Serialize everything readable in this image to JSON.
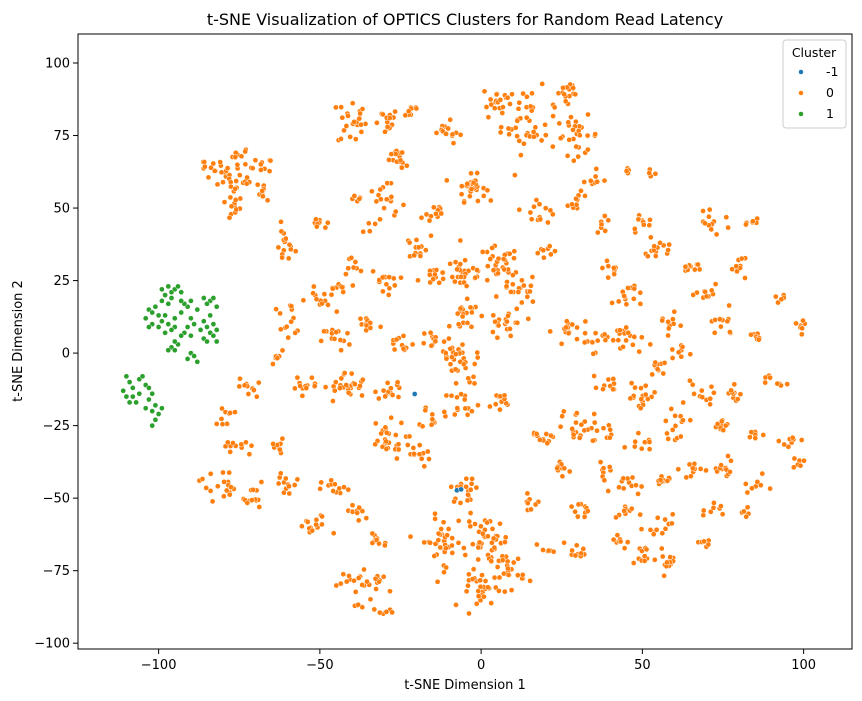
{
  "chart_data": {
    "type": "scatter",
    "title": "t-SNE Visualization of OPTICS Clusters for Random Read Latency",
    "xlabel": "t-SNE Dimension 1",
    "ylabel": "t-SNE Dimension 2",
    "xlim": [
      -125,
      115
    ],
    "ylim": [
      -102,
      110
    ],
    "xticks": [
      -100,
      -50,
      0,
      50,
      100
    ],
    "yticks": [
      -100,
      -75,
      -50,
      -25,
      0,
      25,
      50,
      75,
      100
    ],
    "xtick_labels": [
      "−100",
      "−50",
      "0",
      "50",
      "100"
    ],
    "ytick_labels": [
      "−100",
      "−75",
      "−50",
      "−25",
      "0",
      "25",
      "50",
      "75",
      "100"
    ],
    "grid": false,
    "legend": {
      "title": "Cluster",
      "placement": "top-right",
      "entries": [
        {
          "label": "-1",
          "color": "#1f77b4"
        },
        {
          "label": "0",
          "color": "#ff7f0e"
        },
        {
          "label": "1",
          "color": "#2ca02c"
        }
      ]
    },
    "series": [
      {
        "name": "-1",
        "color": "#1f77b4",
        "points": [
          [
            -7.5,
            -47.3
          ],
          [
            -6.2,
            -47.0
          ],
          [
            -20.6,
            -14.1
          ]
        ]
      },
      {
        "name": "1",
        "color": "#2ca02c",
        "points": [
          [
            -97,
            23
          ],
          [
            -96,
            21
          ],
          [
            -95,
            22
          ],
          [
            -98,
            20
          ],
          [
            -94,
            23
          ],
          [
            -99,
            22
          ],
          [
            -93,
            21
          ],
          [
            -96,
            19
          ],
          [
            -97,
            17
          ],
          [
            -99,
            18
          ],
          [
            -101,
            16
          ],
          [
            -103,
            15
          ],
          [
            -102,
            14
          ],
          [
            -104,
            12
          ],
          [
            -102,
            10
          ],
          [
            -103,
            9
          ],
          [
            -100,
            13
          ],
          [
            -98,
            13
          ],
          [
            -99,
            11
          ],
          [
            -97,
            10
          ],
          [
            -95,
            9
          ],
          [
            -96,
            8
          ],
          [
            -98,
            7
          ],
          [
            -100,
            9
          ],
          [
            -95,
            12
          ],
          [
            -93,
            14
          ],
          [
            -91,
            16
          ],
          [
            -92,
            17
          ],
          [
            -90,
            18
          ],
          [
            -93,
            18
          ],
          [
            -88,
            15
          ],
          [
            -90,
            12
          ],
          [
            -89,
            10
          ],
          [
            -91,
            9
          ],
          [
            -92,
            7
          ],
          [
            -90,
            6
          ],
          [
            -93,
            6
          ],
          [
            -96,
            2
          ],
          [
            -95,
            1
          ],
          [
            -94,
            3
          ],
          [
            -97,
            1
          ],
          [
            -95,
            4
          ],
          [
            -90,
            0
          ],
          [
            -91,
            -2
          ],
          [
            -89,
            -1
          ],
          [
            -88,
            -3
          ],
          [
            -86,
            19
          ],
          [
            -84,
            18
          ],
          [
            -83,
            19
          ],
          [
            -85,
            17
          ],
          [
            -82,
            16
          ],
          [
            -84,
            13
          ],
          [
            -83,
            10
          ],
          [
            -85,
            9
          ],
          [
            -82,
            8
          ],
          [
            -84,
            7
          ],
          [
            -83,
            6
          ],
          [
            -86,
            5
          ],
          [
            -85,
            4
          ],
          [
            -82,
            4
          ],
          [
            -87,
            8
          ],
          [
            -86,
            11
          ],
          [
            -110,
            -8
          ],
          [
            -109,
            -10
          ],
          [
            -108,
            -12
          ],
          [
            -111,
            -13
          ],
          [
            -110,
            -15
          ],
          [
            -108,
            -15
          ],
          [
            -107,
            -17
          ],
          [
            -106,
            -14
          ],
          [
            -104,
            -11
          ],
          [
            -103,
            -12
          ],
          [
            -102,
            -14
          ],
          [
            -103,
            -16
          ],
          [
            -101,
            -18
          ],
          [
            -102,
            -20
          ],
          [
            -104,
            -19
          ],
          [
            -101,
            -23
          ],
          [
            -102,
            -25
          ],
          [
            -100,
            -21
          ],
          [
            -99,
            -19
          ],
          [
            -109,
            -17
          ],
          [
            -106,
            -9
          ],
          [
            -105,
            -8
          ]
        ]
      },
      {
        "name": "0",
        "color": "#ff7f0e",
        "clusters": [
          [
            -80,
            62,
            4,
            5,
            14
          ],
          [
            -75,
            68,
            3,
            3,
            10
          ],
          [
            -74,
            58,
            4,
            3,
            12
          ],
          [
            -68,
            64,
            3,
            3,
            10
          ],
          [
            -67,
            56,
            2,
            3,
            8
          ],
          [
            -78,
            50,
            4,
            4,
            12
          ],
          [
            -85,
            65,
            2,
            2,
            6
          ],
          [
            -61,
            37,
            3,
            6,
            16
          ],
          [
            -50,
            44,
            3,
            2,
            8
          ],
          [
            -38,
            53,
            2,
            1,
            5
          ],
          [
            -40,
            80,
            4,
            8,
            24
          ],
          [
            -30,
            80,
            4,
            4,
            16
          ],
          [
            -22,
            84,
            3,
            3,
            10
          ],
          [
            -25,
            68,
            3,
            3,
            10
          ],
          [
            -12,
            78,
            3,
            3,
            10
          ],
          [
            -3,
            57,
            4,
            4,
            30
          ],
          [
            5,
            87,
            4,
            5,
            18
          ],
          [
            15,
            80,
            8,
            10,
            45
          ],
          [
            27,
            90,
            3,
            6,
            14
          ],
          [
            30,
            75,
            6,
            6,
            26
          ],
          [
            45,
            63,
            3,
            1,
            4
          ],
          [
            52,
            62,
            2,
            1,
            4
          ],
          [
            -30,
            50,
            6,
            8,
            22
          ],
          [
            -15,
            48,
            4,
            4,
            12
          ],
          [
            -5,
            28,
            6,
            6,
            30
          ],
          [
            5,
            30,
            6,
            6,
            30
          ],
          [
            12,
            22,
            5,
            5,
            22
          ],
          [
            -5,
            12,
            4,
            5,
            20
          ],
          [
            8,
            10,
            5,
            5,
            22
          ],
          [
            18,
            50,
            5,
            5,
            14
          ],
          [
            30,
            52,
            3,
            3,
            10
          ],
          [
            38,
            45,
            2,
            3,
            8
          ],
          [
            50,
            45,
            3,
            3,
            10
          ],
          [
            -60,
            12,
            5,
            5,
            14
          ],
          [
            -50,
            18,
            4,
            4,
            12
          ],
          [
            -45,
            22,
            3,
            3,
            10
          ],
          [
            -40,
            30,
            3,
            3,
            8
          ],
          [
            -30,
            25,
            4,
            4,
            14
          ],
          [
            -20,
            36,
            4,
            4,
            12
          ],
          [
            -15,
            25,
            4,
            4,
            12
          ],
          [
            -45,
            5,
            4,
            4,
            14
          ],
          [
            -35,
            10,
            4,
            4,
            14
          ],
          [
            -25,
            3,
            4,
            4,
            12
          ],
          [
            -15,
            5,
            3,
            3,
            10
          ],
          [
            -63,
            -2,
            2,
            2,
            5
          ],
          [
            -55,
            -10,
            4,
            3,
            12
          ],
          [
            -42,
            -12,
            6,
            5,
            30
          ],
          [
            -28,
            -12,
            4,
            4,
            14
          ],
          [
            -15,
            -22,
            3,
            4,
            12
          ],
          [
            -5,
            -17,
            4,
            4,
            14
          ],
          [
            5,
            -17,
            4,
            4,
            12
          ],
          [
            -30,
            -30,
            6,
            6,
            28
          ],
          [
            -20,
            -35,
            4,
            4,
            12
          ],
          [
            -72,
            -12,
            3,
            3,
            10
          ],
          [
            -80,
            -22,
            3,
            3,
            10
          ],
          [
            -75,
            -32,
            4,
            4,
            12
          ],
          [
            -82,
            -45,
            5,
            5,
            16
          ],
          [
            -72,
            -50,
            5,
            5,
            16
          ],
          [
            -63,
            -33,
            3,
            3,
            8
          ],
          [
            -60,
            -45,
            4,
            4,
            12
          ],
          [
            -45,
            -47,
            4,
            3,
            12
          ],
          [
            -52,
            -60,
            5,
            4,
            14
          ],
          [
            -38,
            -55,
            4,
            3,
            10
          ],
          [
            -32,
            -64,
            3,
            3,
            10
          ],
          [
            -40,
            -78,
            4,
            3,
            12
          ],
          [
            -33,
            -80,
            4,
            4,
            12
          ],
          [
            -38,
            -87,
            2,
            1,
            4
          ],
          [
            -30,
            -89,
            3,
            1,
            6
          ],
          [
            -5,
            -47,
            4,
            4,
            20
          ],
          [
            -12,
            -65,
            6,
            8,
            40
          ],
          [
            2,
            -65,
            6,
            8,
            40
          ],
          [
            0,
            -82,
            5,
            5,
            24
          ],
          [
            8,
            -75,
            5,
            6,
            30
          ],
          [
            15,
            -52,
            3,
            3,
            8
          ],
          [
            -5,
            -5,
            6,
            6,
            24
          ],
          [
            -10,
            0,
            3,
            3,
            10
          ],
          [
            28,
            8,
            5,
            4,
            16
          ],
          [
            35,
            5,
            4,
            4,
            14
          ],
          [
            45,
            20,
            4,
            4,
            14
          ],
          [
            55,
            35,
            4,
            4,
            14
          ],
          [
            45,
            5,
            5,
            5,
            18
          ],
          [
            58,
            10,
            3,
            3,
            10
          ],
          [
            55,
            -5,
            3,
            3,
            10
          ],
          [
            65,
            30,
            3,
            3,
            10
          ],
          [
            72,
            45,
            5,
            3,
            12
          ],
          [
            80,
            30,
            3,
            3,
            10
          ],
          [
            85,
            45,
            2,
            2,
            6
          ],
          [
            70,
            20,
            3,
            3,
            10
          ],
          [
            75,
            10,
            4,
            4,
            12
          ],
          [
            85,
            5,
            3,
            3,
            8
          ],
          [
            92,
            18,
            2,
            2,
            6
          ],
          [
            100,
            10,
            3,
            3,
            8
          ],
          [
            90,
            -10,
            3,
            3,
            8
          ],
          [
            78,
            -15,
            3,
            3,
            10
          ],
          [
            75,
            -25,
            3,
            3,
            10
          ],
          [
            85,
            -28,
            2,
            2,
            6
          ],
          [
            96,
            -30,
            3,
            3,
            8
          ],
          [
            98,
            -38,
            2,
            2,
            6
          ],
          [
            68,
            -15,
            4,
            4,
            12
          ],
          [
            60,
            -25,
            4,
            4,
            14
          ],
          [
            50,
            -15,
            5,
            5,
            18
          ],
          [
            40,
            -10,
            3,
            3,
            10
          ],
          [
            30,
            -25,
            5,
            5,
            20
          ],
          [
            20,
            -28,
            4,
            4,
            14
          ],
          [
            25,
            -40,
            3,
            3,
            10
          ],
          [
            38,
            -40,
            3,
            3,
            8
          ],
          [
            45,
            -45,
            4,
            3,
            12
          ],
          [
            55,
            -45,
            3,
            3,
            10
          ],
          [
            65,
            -40,
            3,
            3,
            10
          ],
          [
            75,
            -40,
            4,
            4,
            12
          ],
          [
            85,
            -45,
            3,
            3,
            8
          ],
          [
            30,
            -55,
            3,
            3,
            10
          ],
          [
            45,
            -55,
            3,
            3,
            10
          ],
          [
            55,
            -60,
            4,
            4,
            12
          ],
          [
            72,
            -55,
            3,
            3,
            8
          ],
          [
            82,
            -55,
            2,
            2,
            6
          ],
          [
            30,
            -68,
            3,
            3,
            10
          ],
          [
            42,
            -65,
            3,
            3,
            8
          ],
          [
            50,
            -70,
            3,
            3,
            10
          ],
          [
            58,
            -72,
            4,
            4,
            14
          ],
          [
            70,
            -65,
            2,
            2,
            6
          ],
          [
            20,
            -68,
            2,
            2,
            6
          ],
          [
            50,
            -30,
            3,
            3,
            10
          ],
          [
            38,
            -28,
            3,
            3,
            8
          ],
          [
            62,
            0,
            3,
            3,
            8
          ],
          [
            40,
            30,
            3,
            3,
            8
          ],
          [
            20,
            35,
            3,
            3,
            8
          ],
          [
            35,
            60,
            3,
            3,
            8
          ],
          [
            -25,
            65,
            2,
            2,
            6
          ],
          [
            -8,
            75,
            2,
            2,
            6
          ]
        ]
      }
    ]
  }
}
